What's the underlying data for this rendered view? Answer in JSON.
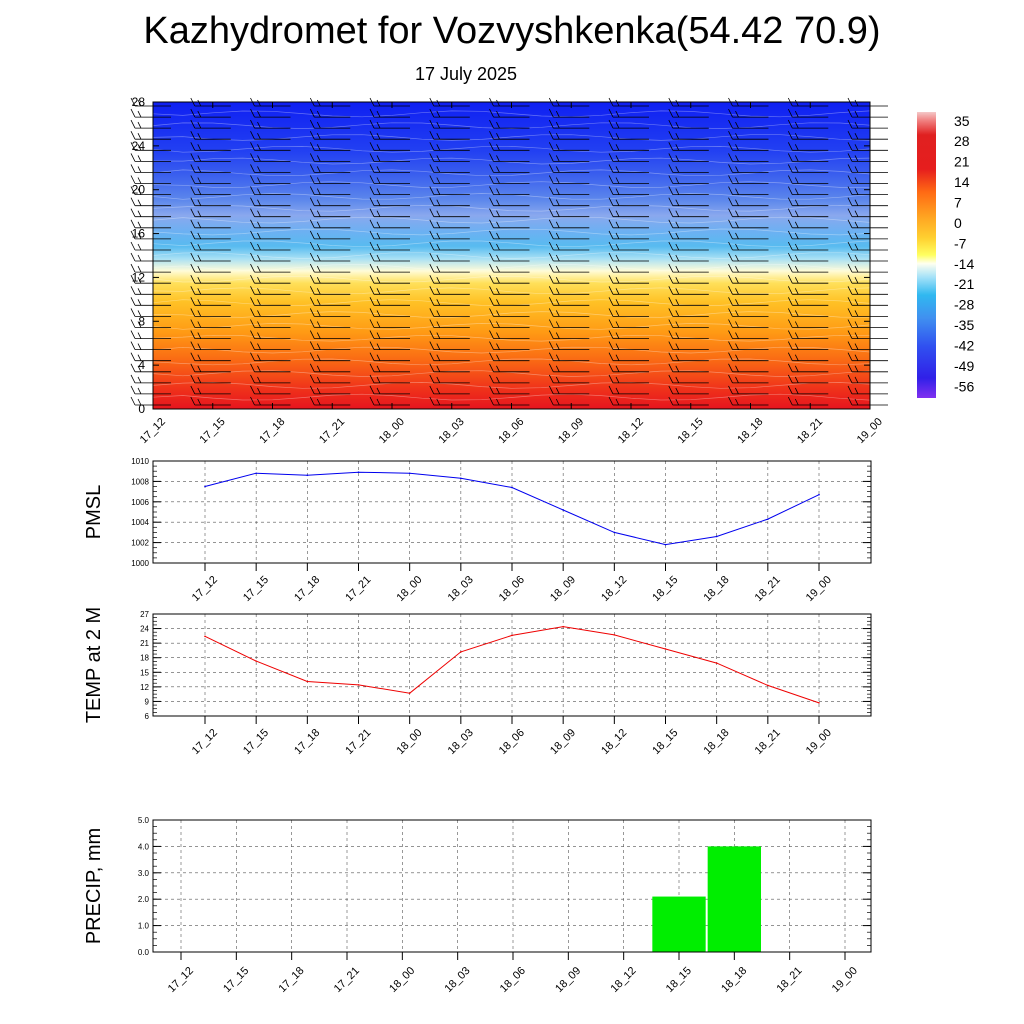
{
  "title": "Kazhydromet for Vozvyshkenka(54.42 70.9)",
  "subtitle": "17 July 2025",
  "time_labels": [
    "17_12",
    "17_15",
    "17_18",
    "17_21",
    "18_00",
    "18_03",
    "18_06",
    "18_09",
    "18_12",
    "18_15",
    "18_18",
    "18_21",
    "19_00"
  ],
  "chart_data": [
    {
      "type": "heatmap",
      "title": "",
      "xlabel": "",
      "ylabel": "",
      "x": [
        "17_12",
        "17_15",
        "17_18",
        "17_21",
        "18_00",
        "18_03",
        "18_06",
        "18_09",
        "18_12",
        "18_15",
        "18_18",
        "18_21",
        "19_00"
      ],
      "ylim": [
        0,
        28
      ],
      "yticks": [
        0,
        4,
        8,
        12,
        16,
        20,
        24,
        28
      ],
      "colorbar": {
        "labels": [
          35,
          28,
          21,
          14,
          7,
          0,
          -7,
          -14,
          -21,
          -28,
          -35,
          -42,
          -49,
          -56
        ],
        "range": [
          -60,
          38
        ]
      },
      "overlay": "wind barbs"
    },
    {
      "type": "line",
      "title": "",
      "xlabel": "",
      "ylabel": "PMSL",
      "x": [
        "17_12",
        "17_15",
        "17_18",
        "17_21",
        "18_00",
        "18_03",
        "18_06",
        "18_09",
        "18_12",
        "18_15",
        "18_18",
        "18_21",
        "19_00"
      ],
      "series": [
        {
          "values": [
            1007.5,
            1008.8,
            1008.6,
            1008.9,
            1008.8,
            1008.3,
            1007.4,
            1005.2,
            1003.0,
            1001.8,
            1002.6,
            1004.3,
            1006.7
          ]
        }
      ],
      "ylim": [
        1000,
        1010
      ],
      "yticks": [
        1000,
        1002,
        1004,
        1006,
        1008,
        1010
      ],
      "grid": true,
      "color": "#0000ee"
    },
    {
      "type": "line",
      "title": "",
      "xlabel": "",
      "ylabel": "TEMP at 2 M",
      "x": [
        "17_12",
        "17_15",
        "17_18",
        "17_21",
        "18_00",
        "18_03",
        "18_06",
        "18_09",
        "18_12",
        "18_15",
        "18_18",
        "18_21",
        "19_00"
      ],
      "series": [
        {
          "values": [
            22.4,
            17.3,
            13.1,
            12.4,
            10.7,
            19.2,
            22.6,
            24.4,
            22.7,
            19.8,
            16.9,
            12.3,
            8.7
          ]
        }
      ],
      "ylim": [
        6,
        27
      ],
      "yticks": [
        6,
        9,
        12,
        15,
        18,
        21,
        24,
        27
      ],
      "grid": true,
      "color": "#ee0000"
    },
    {
      "type": "bar",
      "title": "",
      "xlabel": "",
      "ylabel": "PRECIP, mm",
      "categories": [
        "17_12",
        "17_15",
        "17_18",
        "17_21",
        "18_00",
        "18_03",
        "18_06",
        "18_09",
        "18_12",
        "18_15",
        "18_18",
        "18_21",
        "19_00"
      ],
      "values": [
        0,
        0,
        0,
        0,
        0,
        0,
        0,
        0,
        0,
        2.1,
        4.0,
        0,
        0
      ],
      "ylim": [
        0,
        5
      ],
      "yticks": [
        "0.0",
        "1.0",
        "2.0",
        "3.0",
        "4.0",
        "5.0"
      ],
      "grid": true,
      "color": "#00ee00"
    }
  ]
}
